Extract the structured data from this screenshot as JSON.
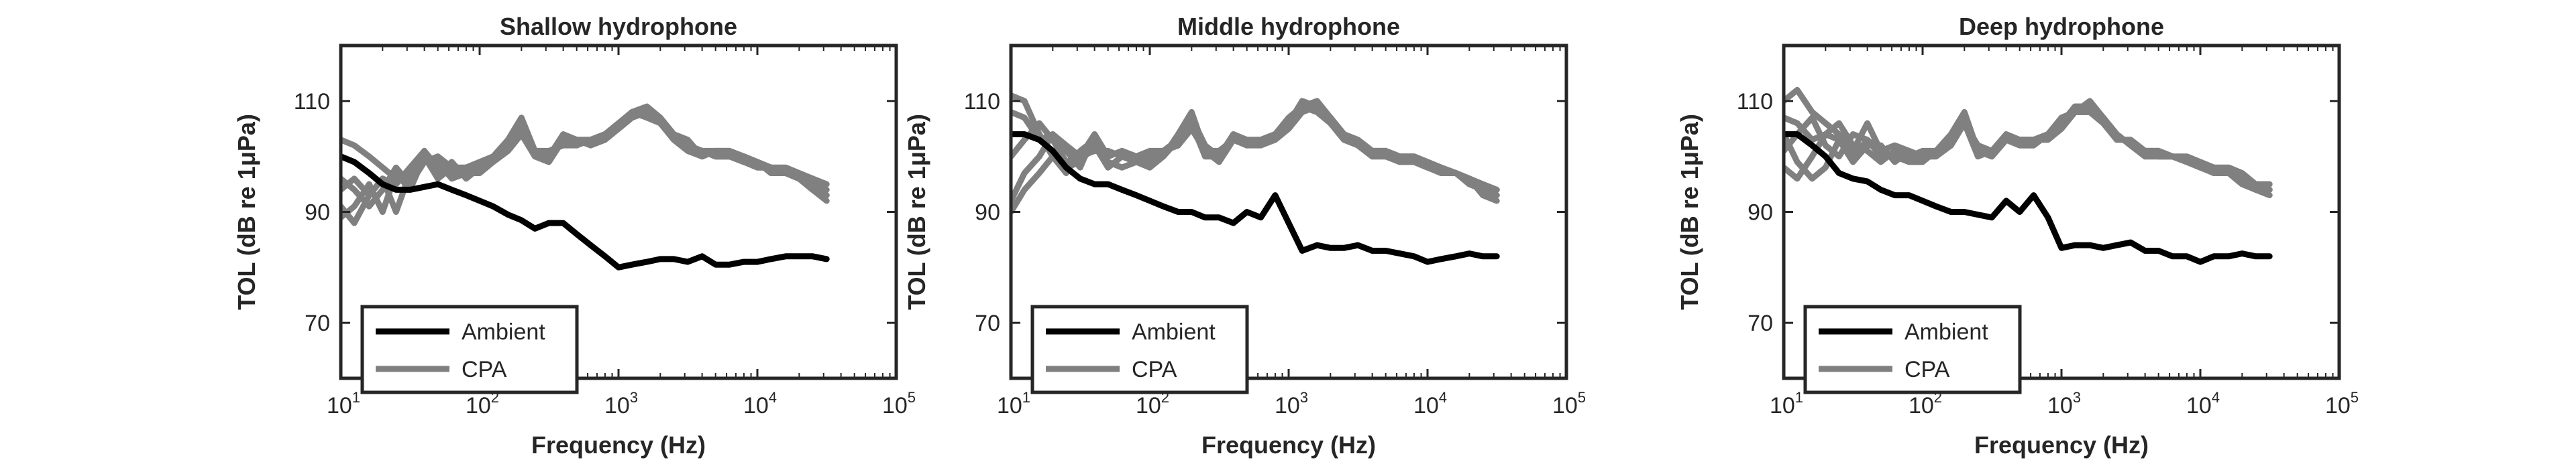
{
  "figure": {
    "background": "#ffffff",
    "ambient_color": "#000000",
    "cpa_color": "#808080"
  },
  "chart_data": [
    {
      "type": "line",
      "title": "Shallow hydrophone",
      "xlabel": "Frequency (Hz)",
      "ylabel": "TOL (dB re 1μPa)",
      "xscale": "log",
      "xlim": [
        10,
        100000
      ],
      "ylim": [
        60,
        120
      ],
      "xticks": [
        10,
        100,
        1000,
        10000,
        100000
      ],
      "xtick_labels": [
        {
          "base": "10",
          "exp": "1"
        },
        {
          "base": "10",
          "exp": "2"
        },
        {
          "base": "10",
          "exp": "3"
        },
        {
          "base": "10",
          "exp": "4"
        },
        {
          "base": "10",
          "exp": "5"
        }
      ],
      "yticks": [
        70,
        90,
        110
      ],
      "ytick_labels": [
        "70",
        "90",
        "110"
      ],
      "grid": false,
      "legend": {
        "position": "bottom-left",
        "entries": [
          "Ambient",
          "CPA"
        ]
      },
      "x": [
        10,
        12.5,
        16,
        20,
        25,
        31.5,
        40,
        50,
        63,
        80,
        100,
        125,
        160,
        200,
        250,
        315,
        400,
        500,
        630,
        800,
        1000,
        1250,
        1600,
        2000,
        2500,
        3150,
        4000,
        5000,
        6300,
        8000,
        10000,
        12500,
        16000,
        20000,
        25000,
        31500
      ],
      "series": [
        {
          "name": "Ambient",
          "values": [
            100,
            99,
            97,
            95,
            94,
            94,
            94.5,
            95,
            94,
            93,
            92,
            91,
            89.5,
            88.5,
            87,
            88,
            88,
            86,
            84,
            82,
            80,
            80.5,
            81,
            81.5,
            81.5,
            81,
            82,
            80.5,
            80.5,
            81,
            81,
            81.5,
            82,
            82,
            82,
            81.5
          ]
        },
        {
          "name": "CPA",
          "values": [
            103,
            102,
            100,
            98,
            96,
            96,
            99,
            100,
            98,
            98,
            98,
            99,
            101,
            104,
            100,
            99,
            103,
            102,
            103,
            104,
            105,
            107,
            108,
            106,
            104,
            102,
            101,
            101,
            101,
            100,
            99,
            98,
            98,
            97,
            96,
            95
          ]
        },
        {
          "name": "",
          "values": [
            94,
            96,
            93,
            96,
            95,
            98,
            101,
            97,
            99,
            96,
            98,
            99,
            103,
            106,
            101,
            100,
            103,
            103,
            102,
            104,
            105,
            108,
            107,
            106,
            103,
            101,
            100,
            101,
            100,
            100,
            99,
            98,
            97,
            96,
            95,
            94
          ]
        },
        {
          "name": "",
          "values": [
            89,
            91,
            95,
            90,
            97,
            94,
            100,
            96,
            98,
            97,
            97,
            99,
            102,
            105,
            100,
            100,
            104,
            103,
            103,
            104,
            105,
            107,
            108,
            106,
            104,
            102,
            101,
            100,
            100,
            99,
            99,
            97,
            97,
            96,
            94,
            93
          ]
        },
        {
          "name": "",
          "values": [
            91,
            88,
            93,
            96,
            90,
            97,
            101,
            98,
            97,
            98,
            99,
            100,
            103,
            107,
            101,
            101,
            102,
            102,
            103,
            104,
            106,
            108,
            109,
            107,
            104,
            103,
            100,
            101,
            101,
            100,
            99,
            98,
            97,
            96,
            94,
            92
          ]
        },
        {
          "name": "",
          "values": [
            96,
            94,
            91,
            94,
            98,
            95,
            99,
            99,
            96,
            97,
            98,
            100,
            102,
            106,
            101,
            100,
            103,
            103,
            102,
            103,
            105,
            108,
            108,
            106,
            104,
            102,
            101,
            100,
            100,
            99,
            98,
            98,
            97,
            96,
            94,
            93
          ]
        }
      ]
    },
    {
      "type": "line",
      "title": "Middle hydrophone",
      "xlabel": "Frequency (Hz)",
      "ylabel": "TOL (dB re 1μPa)",
      "xscale": "log",
      "xlim": [
        10,
        100000
      ],
      "ylim": [
        60,
        120
      ],
      "xticks": [
        10,
        100,
        1000,
        10000,
        100000
      ],
      "xtick_labels": [
        {
          "base": "10",
          "exp": "1"
        },
        {
          "base": "10",
          "exp": "2"
        },
        {
          "base": "10",
          "exp": "3"
        },
        {
          "base": "10",
          "exp": "4"
        },
        {
          "base": "10",
          "exp": "5"
        }
      ],
      "yticks": [
        70,
        90,
        110
      ],
      "ytick_labels": [
        "70",
        "90",
        "110"
      ],
      "grid": false,
      "legend": {
        "position": "bottom-left",
        "entries": [
          "Ambient",
          "CPA"
        ]
      },
      "x": [
        10,
        12.5,
        16,
        20,
        25,
        31.5,
        40,
        50,
        63,
        80,
        100,
        125,
        160,
        200,
        250,
        315,
        400,
        500,
        630,
        800,
        1000,
        1250,
        1600,
        2000,
        2500,
        3150,
        4000,
        5000,
        6300,
        8000,
        10000,
        12500,
        16000,
        20000,
        25000,
        31500
      ],
      "series": [
        {
          "name": "Ambient",
          "values": [
            104,
            104,
            103,
            101,
            98,
            96,
            95,
            95,
            94,
            93,
            92,
            91,
            90,
            90,
            89,
            89,
            88,
            90,
            89,
            93,
            88,
            83,
            84,
            83.5,
            83.5,
            84,
            83,
            83,
            82.5,
            82,
            81,
            81.5,
            82,
            82.5,
            82,
            82
          ]
        },
        {
          "name": "CPA",
          "values": [
            108,
            107,
            103,
            104,
            102,
            100,
            104,
            100,
            101,
            100,
            100,
            101,
            102,
            105,
            101,
            100,
            104,
            102,
            103,
            104,
            106,
            110,
            109,
            107,
            104,
            103,
            101,
            101,
            100,
            100,
            99,
            98,
            97,
            96,
            95,
            94
          ]
        },
        {
          "name": "",
          "values": [
            111,
            110,
            104,
            100,
            98,
            99,
            102,
            98,
            100,
            99,
            99,
            101,
            103,
            106,
            100,
            100,
            103,
            102,
            102,
            104,
            106,
            109,
            108,
            106,
            104,
            102,
            100,
            101,
            100,
            99,
            98,
            97,
            97,
            96,
            94,
            93
          ]
        },
        {
          "name": "",
          "values": [
            90,
            94,
            97,
            100,
            97,
            101,
            103,
            99,
            98,
            99,
            100,
            100,
            104,
            108,
            101,
            101,
            103,
            103,
            103,
            104,
            107,
            109,
            110,
            107,
            104,
            103,
            101,
            100,
            100,
            99,
            98,
            98,
            97,
            96,
            93,
            92
          ]
        },
        {
          "name": "",
          "values": [
            92,
            97,
            100,
            104,
            101,
            98,
            104,
            100,
            101,
            100,
            101,
            101,
            102,
            107,
            102,
            100,
            104,
            103,
            102,
            103,
            105,
            108,
            109,
            106,
            103,
            102,
            101,
            101,
            100,
            100,
            99,
            98,
            97,
            96,
            95,
            94
          ]
        },
        {
          "name": "",
          "values": [
            100,
            103,
            106,
            103,
            99,
            100,
            101,
            101,
            100,
            99,
            98,
            100,
            103,
            106,
            101,
            99,
            103,
            102,
            103,
            104,
            106,
            109,
            108,
            107,
            104,
            102,
            100,
            100,
            99,
            99,
            99,
            97,
            97,
            95,
            94,
            93
          ]
        }
      ]
    },
    {
      "type": "line",
      "title": "Deep hydrophone",
      "xlabel": "Frequency (Hz)",
      "ylabel": "TOL (dB re 1μPa)",
      "xscale": "log",
      "xlim": [
        10,
        100000
      ],
      "ylim": [
        60,
        120
      ],
      "xticks": [
        10,
        100,
        1000,
        10000,
        100000
      ],
      "xtick_labels": [
        {
          "base": "10",
          "exp": "1"
        },
        {
          "base": "10",
          "exp": "2"
        },
        {
          "base": "10",
          "exp": "3"
        },
        {
          "base": "10",
          "exp": "4"
        },
        {
          "base": "10",
          "exp": "5"
        }
      ],
      "yticks": [
        70,
        90,
        110
      ],
      "ytick_labels": [
        "70",
        "90",
        "110"
      ],
      "grid": false,
      "legend": {
        "position": "bottom-left",
        "entries": [
          "Ambient",
          "CPA"
        ]
      },
      "x": [
        10,
        12.5,
        16,
        20,
        25,
        31.5,
        40,
        50,
        63,
        80,
        100,
        125,
        160,
        200,
        250,
        315,
        400,
        500,
        630,
        800,
        1000,
        1250,
        1600,
        2000,
        2500,
        3150,
        4000,
        5000,
        6300,
        8000,
        10000,
        12500,
        16000,
        20000,
        25000,
        31500
      ],
      "series": [
        {
          "name": "Ambient",
          "values": [
            104,
            104,
            102,
            100,
            97,
            96,
            95.5,
            94,
            93,
            93,
            92,
            91,
            90,
            90,
            89.5,
            89,
            92,
            90,
            93,
            89,
            83.5,
            84,
            84,
            83.5,
            84,
            84.5,
            83,
            83,
            82,
            82,
            81,
            82,
            82,
            82.5,
            82,
            82
          ]
        },
        {
          "name": "CPA",
          "values": [
            107,
            106,
            103,
            104,
            103,
            101,
            106,
            101,
            102,
            101,
            100,
            101,
            103,
            107,
            101,
            101,
            103,
            103,
            103,
            104,
            107,
            108,
            110,
            107,
            104,
            102,
            101,
            101,
            100,
            99,
            98,
            98,
            97,
            96,
            95,
            95
          ]
        },
        {
          "name": "",
          "values": [
            110,
            112,
            108,
            106,
            104,
            100,
            103,
            100,
            100,
            99,
            99,
            101,
            104,
            108,
            101,
            100,
            103,
            102,
            102,
            104,
            106,
            109,
            109,
            106,
            104,
            102,
            100,
            101,
            100,
            99,
            99,
            97,
            97,
            96,
            94,
            94
          ]
        },
        {
          "name": "",
          "values": [
            98,
            96,
            100,
            104,
            106,
            102,
            101,
            99,
            101,
            100,
            100,
            100,
            102,
            106,
            102,
            101,
            104,
            103,
            103,
            103,
            105,
            108,
            108,
            106,
            103,
            103,
            101,
            100,
            100,
            99,
            98,
            98,
            97,
            96,
            95,
            94
          ]
        },
        {
          "name": "",
          "values": [
            101,
            104,
            107,
            102,
            100,
            104,
            103,
            101,
            100,
            100,
            101,
            101,
            103,
            107,
            101,
            100,
            103,
            102,
            102,
            104,
            106,
            109,
            109,
            107,
            104,
            102,
            101,
            101,
            100,
            100,
            99,
            98,
            98,
            97,
            95,
            94
          ]
        },
        {
          "name": "",
          "values": [
            104,
            99,
            96,
            98,
            103,
            99,
            102,
            102,
            99,
            101,
            100,
            101,
            102,
            106,
            100,
            101,
            103,
            103,
            103,
            104,
            106,
            108,
            108,
            107,
            104,
            102,
            100,
            100,
            100,
            99,
            98,
            97,
            97,
            95,
            94,
            93
          ]
        }
      ]
    }
  ]
}
